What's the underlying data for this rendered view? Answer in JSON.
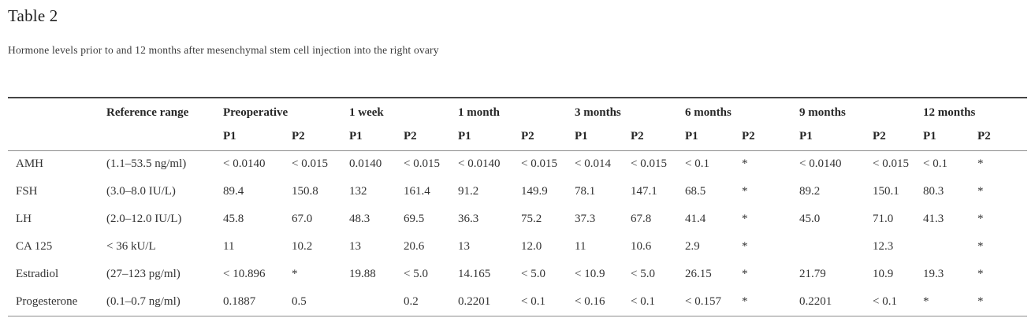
{
  "title": "Table 2",
  "caption": "Hormone levels prior to and 12 months after mesenchymal stem cell injection into the right ovary",
  "table": {
    "ref_header": "Reference range",
    "groups": [
      {
        "label": "Preoperative"
      },
      {
        "label": "1 week"
      },
      {
        "label": "1 month"
      },
      {
        "label": "3 months"
      },
      {
        "label": "6 months"
      },
      {
        "label": "9 months"
      },
      {
        "label": "12 months"
      }
    ],
    "subheaders": [
      "P1",
      "P2",
      "P1",
      "P2",
      "P1",
      "P2",
      "P1",
      "P2",
      "P1",
      "P2",
      "P1",
      "P2",
      "P1",
      "P2"
    ],
    "rows": [
      {
        "name": "AMH",
        "ref": "(1.1–53.5 ng/ml)",
        "values": [
          "< 0.0140",
          "< 0.015",
          "0.0140",
          "< 0.015",
          "< 0.0140",
          "< 0.015",
          "< 0.014",
          "< 0.015",
          "< 0.1",
          "*",
          "< 0.0140",
          "< 0.015",
          "< 0.1",
          "*"
        ]
      },
      {
        "name": "FSH",
        "ref": "(3.0–8.0 IU/L)",
        "values": [
          "89.4",
          "150.8",
          "132",
          "161.4",
          "91.2",
          "149.9",
          "78.1",
          "147.1",
          "68.5",
          "*",
          "89.2",
          "150.1",
          "80.3",
          "*"
        ]
      },
      {
        "name": "LH",
        "ref": "(2.0–12.0 IU/L)",
        "values": [
          "45.8",
          "67.0",
          "48.3",
          "69.5",
          "36.3",
          "75.2",
          "37.3",
          "67.8",
          "41.4",
          "*",
          "45.0",
          "71.0",
          "41.3",
          "*"
        ]
      },
      {
        "name": "CA 125",
        "ref": "< 36 kU/L",
        "values": [
          "11",
          "10.2",
          "13",
          "20.6",
          "13",
          "12.0",
          "11",
          "10.6",
          "2.9",
          "*",
          "",
          "12.3",
          "",
          "*"
        ]
      },
      {
        "name": "Estradiol",
        "ref": "(27–123 pg/ml)",
        "values": [
          "< 10.896",
          "*",
          "19.88",
          "< 5.0",
          "14.165",
          "< 5.0",
          "< 10.9",
          "< 5.0",
          "26.15",
          "*",
          "21.79",
          "10.9",
          "19.3",
          "*"
        ]
      },
      {
        "name": "Progesterone",
        "ref": "(0.1–0.7 ng/ml)",
        "values": [
          "0.1887",
          "0.5",
          "",
          "0.2",
          "0.2201",
          "< 0.1",
          "< 0.16",
          "< 0.1",
          "< 0.157",
          "*",
          "0.2201",
          "< 0.1",
          "*",
          "*"
        ]
      }
    ]
  },
  "chart_data": {
    "type": "table",
    "title": "Table 2",
    "caption": "Hormone levels prior to and 12 months after mesenchymal stem cell injection into the right ovary",
    "column_groups": [
      "Reference range",
      "Preoperative",
      "1 week",
      "1 month",
      "3 months",
      "6 months",
      "9 months",
      "12 months"
    ],
    "subcolumns_per_timepoint": [
      "P1",
      "P2"
    ],
    "rows": [
      [
        "AMH",
        "(1.1–53.5 ng/ml)",
        "< 0.0140",
        "< 0.015",
        "0.0140",
        "< 0.015",
        "< 0.0140",
        "< 0.015",
        "< 0.014",
        "< 0.015",
        "< 0.1",
        "*",
        "< 0.0140",
        "< 0.015",
        "< 0.1",
        "*"
      ],
      [
        "FSH",
        "(3.0–8.0 IU/L)",
        "89.4",
        "150.8",
        "132",
        "161.4",
        "91.2",
        "149.9",
        "78.1",
        "147.1",
        "68.5",
        "*",
        "89.2",
        "150.1",
        "80.3",
        "*"
      ],
      [
        "LH",
        "(2.0–12.0 IU/L)",
        "45.8",
        "67.0",
        "48.3",
        "69.5",
        "36.3",
        "75.2",
        "37.3",
        "67.8",
        "41.4",
        "*",
        "45.0",
        "71.0",
        "41.3",
        "*"
      ],
      [
        "CA 125",
        "< 36 kU/L",
        "11",
        "10.2",
        "13",
        "20.6",
        "13",
        "12.0",
        "11",
        "10.6",
        "2.9",
        "*",
        "",
        "12.3",
        "",
        "*"
      ],
      [
        "Estradiol",
        "(27–123 pg/ml)",
        "< 10.896",
        "*",
        "19.88",
        "< 5.0",
        "14.165",
        "< 5.0",
        "< 10.9",
        "< 5.0",
        "26.15",
        "*",
        "21.79",
        "10.9",
        "19.3",
        "*"
      ],
      [
        "Progesterone",
        "(0.1–0.7 ng/ml)",
        "0.1887",
        "0.5",
        "",
        "0.2",
        "0.2201",
        "< 0.1",
        "< 0.16",
        "< 0.1",
        "< 0.157",
        "*",
        "0.2201",
        "< 0.1",
        "*",
        "*"
      ]
    ]
  }
}
